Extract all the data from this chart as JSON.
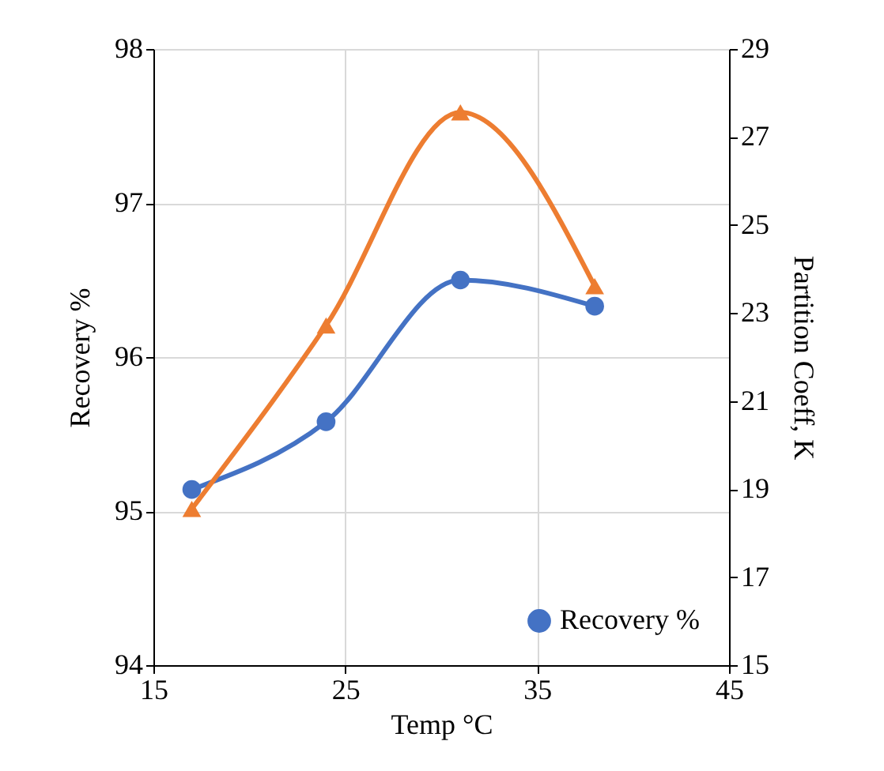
{
  "chart_data": {
    "type": "line",
    "xlabel": "Temp °C",
    "ylabel": "Recovery %",
    "y2label": "Partition Coeff, K",
    "x": [
      17,
      24,
      31,
      38
    ],
    "series": [
      {
        "name": "Recovery %",
        "color": "#4472c4",
        "marker": "circle",
        "values": [
          95.14,
          95.58,
          96.5,
          96.33
        ]
      },
      {
        "color": "#ed7d31",
        "marker": "triangle",
        "axis": "y2",
        "values": [
          18.55,
          22.72,
          27.56,
          23.61
        ]
      }
    ],
    "xlim": [
      15,
      45
    ],
    "xticks": [
      15,
      25,
      35,
      45
    ],
    "ylim": [
      94,
      98
    ],
    "yticks": [
      94,
      95,
      96,
      97,
      98
    ],
    "y2lim": [
      15,
      29
    ],
    "y2ticks": [
      15,
      17,
      19,
      21,
      23,
      25,
      27,
      29
    ],
    "grid": true,
    "legend": "bottom right",
    "line_style": "solid"
  }
}
